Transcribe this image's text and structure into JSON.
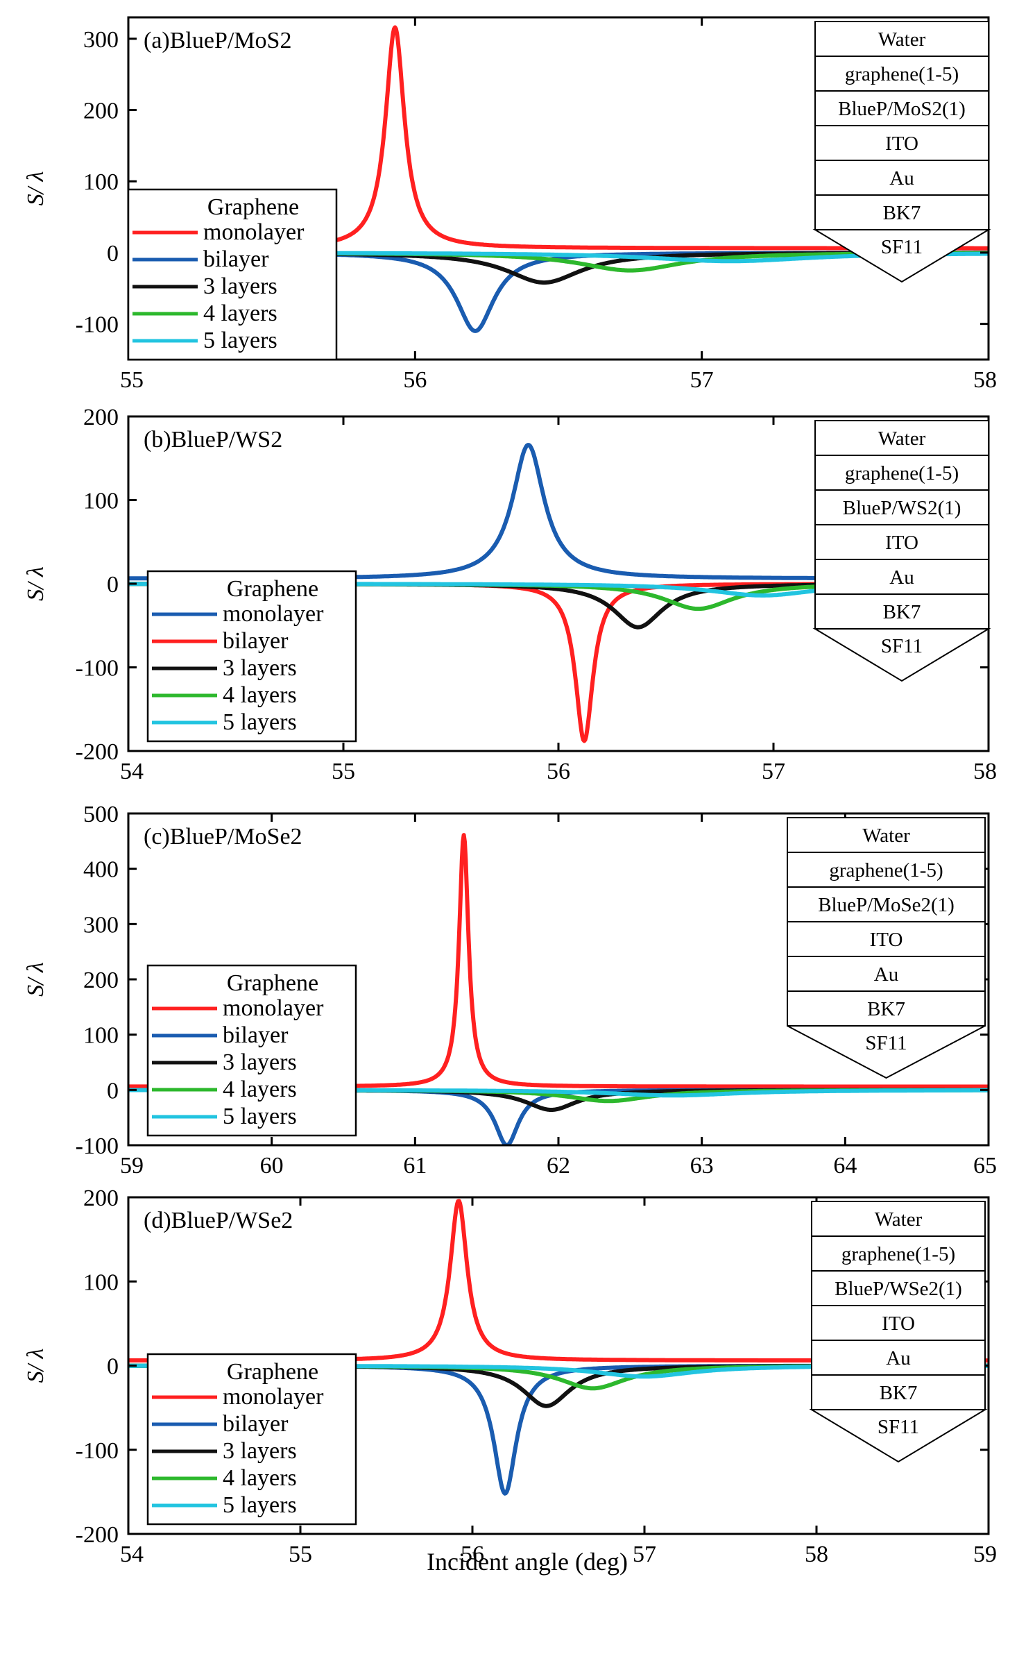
{
  "figure": {
    "xlabel": "Incident angle  (deg)"
  },
  "colors": {
    "red": "#ff2020",
    "blue": "#1a5cb0",
    "black": "#111111",
    "green": "#2db82d",
    "cyan": "#22c4e0"
  },
  "chart_data": [
    {
      "type": "line",
      "title": "(a)BlueP/MoS2",
      "ylabel": "S/ λ",
      "xlim": [
        55,
        58
      ],
      "ylim": [
        -150,
        330
      ],
      "xticks": [
        55,
        56,
        57,
        58
      ],
      "yticks": [
        -100,
        0,
        100,
        200,
        300
      ],
      "legend": {
        "title": "Graphene",
        "position": "bottom-left",
        "entries": [
          "monolayer",
          "bilayer",
          "3 layers",
          "4 layers",
          "5 layers"
        ]
      },
      "series": [
        {
          "name": "monolayer",
          "color": "red",
          "center": 55.93,
          "amp": 310,
          "width": 0.04,
          "neg": 0,
          "negw": 0
        },
        {
          "name": "bilayer",
          "color": "blue",
          "center": 56.21,
          "amp": -110,
          "width": 0.08,
          "neg": 0,
          "negw": 0
        },
        {
          "name": "3 layers",
          "color": "black",
          "center": 56.45,
          "amp": -42,
          "width": 0.16,
          "neg": 0,
          "negw": 0
        },
        {
          "name": "4 layers",
          "color": "green",
          "center": 56.75,
          "amp": -25,
          "width": 0.22,
          "neg": 0,
          "negw": 0
        },
        {
          "name": "5 layers",
          "color": "cyan",
          "center": 57.1,
          "amp": -12,
          "width": 0.35,
          "neg": 0,
          "negw": 0
        }
      ],
      "layer_stack": [
        "Water",
        "graphene(1-5)",
        "BlueP/MoS2(1)",
        "ITO",
        "Au",
        "BK7",
        "SF11"
      ]
    },
    {
      "type": "line",
      "title": "(b)BlueP/WS2",
      "ylabel": "S/ λ",
      "xlim": [
        54,
        58
      ],
      "ylim": [
        -200,
        200
      ],
      "xticks": [
        54,
        55,
        56,
        57,
        58
      ],
      "yticks": [
        -200,
        -100,
        0,
        100,
        200
      ],
      "legend": {
        "title": "Graphene",
        "position": "bottom-left",
        "entries": [
          "monolayer",
          "bilayer",
          "3 layers",
          "4 layers",
          "5 layers"
        ]
      },
      "series": [
        {
          "name": "monolayer",
          "color": "blue",
          "center": 55.86,
          "amp": 160,
          "width": 0.09,
          "neg": 0,
          "negw": 0
        },
        {
          "name": "bilayer",
          "color": "red",
          "center": 56.12,
          "amp": -188,
          "width": 0.05,
          "neg": 0,
          "negw": 0
        },
        {
          "name": "3 layers",
          "color": "black",
          "center": 56.37,
          "amp": -52,
          "width": 0.14,
          "neg": 0,
          "negw": 0
        },
        {
          "name": "4 layers",
          "color": "green",
          "center": 56.65,
          "amp": -30,
          "width": 0.2,
          "neg": 0,
          "negw": 0
        },
        {
          "name": "5 layers",
          "color": "cyan",
          "center": 56.95,
          "amp": -14,
          "width": 0.3,
          "neg": 0,
          "negw": 0
        }
      ],
      "layer_stack": [
        "Water",
        "graphene(1-5)",
        "BlueP/WS2(1)",
        "ITO",
        "Au",
        "BK7",
        "SF11"
      ]
    },
    {
      "type": "line",
      "title": "(c)BlueP/MoSe2",
      "ylabel": "S/ λ",
      "xlim": [
        59,
        65
      ],
      "ylim": [
        -100,
        500
      ],
      "xticks": [
        59,
        60,
        61,
        62,
        63,
        64,
        65
      ],
      "yticks": [
        -100,
        0,
        100,
        200,
        300,
        400,
        500
      ],
      "legend": {
        "title": "Graphene",
        "position": "bottom-left",
        "entries": [
          "monolayer",
          "bilayer",
          "3 layers",
          "4 layers",
          "5 layers"
        ]
      },
      "series": [
        {
          "name": "monolayer",
          "color": "red",
          "center": 61.34,
          "amp": 455,
          "width": 0.04,
          "neg": 0,
          "negw": 0
        },
        {
          "name": "bilayer",
          "color": "blue",
          "center": 61.64,
          "amp": -100,
          "width": 0.1,
          "neg": 0,
          "negw": 0
        },
        {
          "name": "3 layers",
          "color": "black",
          "center": 61.95,
          "amp": -36,
          "width": 0.22,
          "neg": 0,
          "negw": 0
        },
        {
          "name": "4 layers",
          "color": "green",
          "center": 62.35,
          "amp": -20,
          "width": 0.35,
          "neg": 0,
          "negw": 0
        },
        {
          "name": "5 layers",
          "color": "cyan",
          "center": 62.8,
          "amp": -10,
          "width": 0.55,
          "neg": 0,
          "negw": 0
        }
      ],
      "layer_stack": [
        "Water",
        "graphene(1-5)",
        "BlueP/MoSe2(1)",
        "ITO",
        "Au",
        "BK7",
        "SF11"
      ]
    },
    {
      "type": "line",
      "title": "(d)BlueP/WSe2",
      "ylabel": "S/ λ",
      "xlabel": "Incident angle  (deg)",
      "xlim": [
        54,
        59
      ],
      "ylim": [
        -200,
        200
      ],
      "xticks": [
        54,
        55,
        56,
        57,
        58,
        59
      ],
      "yticks": [
        -200,
        -100,
        0,
        100,
        200
      ],
      "legend": {
        "title": "Graphene",
        "position": "bottom-left",
        "entries": [
          "monolayer",
          "bilayer",
          "3 layers",
          "4 layers",
          "5 layers"
        ]
      },
      "series": [
        {
          "name": "monolayer",
          "color": "red",
          "center": 55.92,
          "amp": 190,
          "width": 0.06,
          "neg": 0,
          "negw": 0
        },
        {
          "name": "bilayer",
          "color": "blue",
          "center": 56.19,
          "amp": -152,
          "width": 0.08,
          "neg": 0,
          "negw": 0
        },
        {
          "name": "3 layers",
          "color": "black",
          "center": 56.43,
          "amp": -48,
          "width": 0.17,
          "neg": 0,
          "negw": 0
        },
        {
          "name": "4 layers",
          "color": "green",
          "center": 56.7,
          "amp": -27,
          "width": 0.24,
          "neg": 0,
          "negw": 0
        },
        {
          "name": "5 layers",
          "color": "cyan",
          "center": 57.0,
          "amp": -13,
          "width": 0.35,
          "neg": 0,
          "negw": 0
        }
      ],
      "layer_stack": [
        "Water",
        "graphene(1-5)",
        "BlueP/WSe2(1)",
        "ITO",
        "Au",
        "BK7",
        "SF11"
      ]
    }
  ]
}
